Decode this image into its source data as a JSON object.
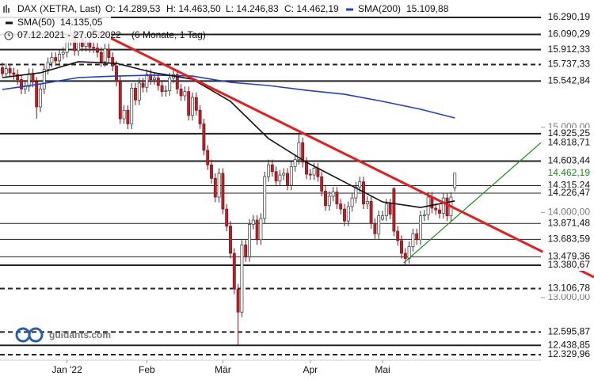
{
  "chart_data": {
    "type": "candlestick",
    "legend": {
      "instrument": "DAX (XETRA, Last)",
      "ohlc": [
        "O: 14.289,53",
        "H: 14.463,50",
        "L: 14.246,83",
        "C: 14.462,19"
      ],
      "range": "07.12.2021 - 27.05.2022",
      "period": "(6 Monate, 1 Tag)"
    },
    "watermark": "guidants.com",
    "ylim": [
      12265,
      16495
    ],
    "yticks": [
      {
        "value": 15000,
        "label": "15.000,00"
      },
      {
        "value": 14000,
        "label": "14.000,00"
      },
      {
        "value": 13000,
        "label": "13.000,00"
      }
    ],
    "xticks": [
      {
        "value": 17,
        "label": "Jan '22"
      },
      {
        "value": 38,
        "label": "Feb"
      },
      {
        "value": 58,
        "label": "Mär"
      },
      {
        "value": 81,
        "label": "Apr"
      },
      {
        "value": 100,
        "label": "Mai"
      }
    ],
    "levels": [
      {
        "value": 16290.19,
        "label": "16.290,19",
        "style": "solid"
      },
      {
        "value": 16090.29,
        "label": "16.090,29",
        "style": "solid"
      },
      {
        "value": 15912.33,
        "label": "15.912,33",
        "style": "solid"
      },
      {
        "value": 15737.33,
        "label": "15.737,33",
        "style": "dashed"
      },
      {
        "value": 15542.84,
        "label": "15.542,84",
        "style": "solid"
      },
      {
        "value": 14925.25,
        "label": "14.925,25",
        "style": "solid"
      },
      {
        "value": 14818.71,
        "label": "14.818,71",
        "style": "none"
      },
      {
        "value": 14603.44,
        "label": "14.603,44",
        "style": "solid"
      },
      {
        "value": 14462.19,
        "label": "14.462,19",
        "style": "current"
      },
      {
        "value": 14315.24,
        "label": "14.315,24",
        "style": "thin"
      },
      {
        "value": 14226.47,
        "label": "14.226,47",
        "style": "thin"
      },
      {
        "value": 13871.48,
        "label": "13.871,48",
        "style": "thin"
      },
      {
        "value": 13683.59,
        "label": "13.683,59",
        "style": "thin"
      },
      {
        "value": 13479.36,
        "label": "13.479,36",
        "style": "thin"
      },
      {
        "value": 13380.67,
        "label": "13.380,67",
        "style": "solid"
      },
      {
        "value": 13106.78,
        "label": "13.106,78",
        "style": "dashed"
      },
      {
        "value": 12595.87,
        "label": "12.595,87",
        "style": "dashed"
      },
      {
        "value": 12438.85,
        "label": "12.438,85",
        "style": "solid"
      },
      {
        "value": 12329.96,
        "label": "12.329,96",
        "style": "dashed"
      }
    ],
    "candles": {
      "open": [
        15700,
        15630,
        15690,
        15640,
        15620,
        15560,
        15450,
        15480,
        15630,
        15530,
        15240,
        15450,
        15680,
        15760,
        15820,
        15780,
        15860,
        15880,
        16020,
        16100,
        15900,
        16050,
        15950,
        16000,
        15940,
        15930,
        15880,
        15770,
        15920,
        15820,
        15720,
        15540,
        15100,
        15200,
        15040,
        15460,
        15320,
        15520,
        15470,
        15620,
        15560,
        15580,
        15490,
        15420,
        15430,
        15580,
        15620,
        15450,
        15370,
        15420,
        15140,
        15350,
        15200,
        15040,
        14730,
        14560,
        14400,
        14180,
        14460,
        14040,
        13840,
        13520,
        13100,
        12830,
        13620,
        13480,
        13860,
        13910,
        13680,
        13930,
        14420,
        14560,
        14480,
        14370,
        14440,
        14460,
        14320,
        14540,
        14620,
        14820,
        14590,
        14450,
        14440,
        14520,
        14420,
        14250,
        14080,
        14190,
        14240,
        14100,
        14040,
        13900,
        14070,
        14170,
        14300,
        14360,
        14100,
        14130,
        13870,
        13750,
        13920,
        13960,
        14100,
        14280,
        13780,
        13670,
        13520,
        13460,
        13600,
        13750,
        13680,
        13960,
        13970,
        14180,
        14050,
        14030,
        13990,
        14170,
        13960,
        14289.53
      ],
      "high": [
        15760,
        15750,
        15740,
        15700,
        15680,
        15620,
        15540,
        15690,
        15690,
        15590,
        15510,
        15740,
        15820,
        15880,
        15880,
        15920,
        15940,
        16080,
        16290,
        16160,
        16110,
        16110,
        16060,
        16060,
        16000,
        15990,
        15940,
        15980,
        15980,
        15880,
        15780,
        15600,
        15260,
        15260,
        15520,
        15520,
        15580,
        15580,
        15680,
        15680,
        15640,
        15640,
        15550,
        15490,
        15640,
        15680,
        15680,
        15510,
        15480,
        15480,
        15410,
        15410,
        15260,
        15100,
        14790,
        14620,
        14460,
        14520,
        14520,
        14100,
        13900,
        13580,
        13160,
        13680,
        13680,
        13920,
        13970,
        13970,
        13990,
        14480,
        14620,
        14620,
        14540,
        14500,
        14520,
        14520,
        14600,
        14680,
        14920,
        14880,
        14650,
        14510,
        14580,
        14580,
        14480,
        14310,
        14250,
        14300,
        14300,
        14160,
        14100,
        14130,
        14230,
        14360,
        14420,
        14420,
        14190,
        14190,
        13930,
        14020,
        14020,
        14160,
        14160,
        14300,
        13840,
        13730,
        13580,
        13660,
        13810,
        13810,
        14020,
        14030,
        14240,
        14240,
        14110,
        14090,
        14230,
        14230,
        14240,
        14463.5
      ],
      "low": [
        15590,
        15580,
        15590,
        15560,
        15500,
        15390,
        15390,
        15420,
        15470,
        15100,
        15180,
        15390,
        15620,
        15700,
        15720,
        15720,
        15800,
        15820,
        15960,
        15840,
        15840,
        15890,
        15890,
        15880,
        15870,
        15820,
        15710,
        15710,
        15760,
        15660,
        15480,
        15040,
        15040,
        14980,
        14980,
        15260,
        15260,
        15410,
        15410,
        15500,
        15500,
        15430,
        15360,
        15360,
        15370,
        15520,
        15390,
        15310,
        15310,
        15080,
        15080,
        15140,
        14980,
        14670,
        14500,
        14340,
        14120,
        14120,
        13980,
        13780,
        13460,
        13040,
        12440,
        12770,
        13420,
        13420,
        13800,
        13620,
        13620,
        13870,
        14360,
        14420,
        14310,
        14310,
        14380,
        14260,
        14260,
        14480,
        14560,
        14530,
        14390,
        14380,
        14380,
        14360,
        14190,
        14020,
        14020,
        14130,
        14040,
        13980,
        13840,
        13840,
        14010,
        14110,
        14240,
        14040,
        14040,
        13810,
        13690,
        13690,
        13900,
        13900,
        13920,
        13720,
        13610,
        13460,
        13380,
        13400,
        13540,
        13620,
        13620,
        13900,
        13910,
        13990,
        13970,
        13930,
        13930,
        13900,
        13900,
        14246.83
      ],
      "close": [
        15630,
        15690,
        15640,
        15620,
        15560,
        15450,
        15480,
        15630,
        15530,
        15240,
        15450,
        15680,
        15760,
        15820,
        15780,
        15860,
        15880,
        16020,
        16100,
        15900,
        16050,
        15950,
        16000,
        15940,
        15930,
        15880,
        15770,
        15920,
        15820,
        15720,
        15540,
        15100,
        15200,
        15040,
        15460,
        15320,
        15520,
        15470,
        15620,
        15560,
        15580,
        15490,
        15420,
        15430,
        15580,
        15620,
        15450,
        15370,
        15420,
        15140,
        15350,
        15200,
        15040,
        14730,
        14560,
        14400,
        14180,
        14460,
        14040,
        13840,
        13520,
        13100,
        12830,
        13620,
        13480,
        13860,
        13910,
        13680,
        13930,
        14420,
        14560,
        14480,
        14370,
        14440,
        14460,
        14320,
        14540,
        14620,
        14820,
        14590,
        14450,
        14440,
        14520,
        14420,
        14250,
        14080,
        14190,
        14240,
        14100,
        14040,
        13900,
        14070,
        14170,
        14300,
        14360,
        14100,
        14130,
        13870,
        13750,
        13960,
        13960,
        14100,
        13980,
        13780,
        13670,
        13520,
        13460,
        13600,
        13750,
        13680,
        13960,
        13970,
        14180,
        14050,
        14030,
        13990,
        14170,
        13960,
        14180,
        14462.19
      ]
    },
    "series": [
      {
        "name": "SMA(200)",
        "color": "#1d3fd6",
        "value_label": "15.109,88",
        "x": [
          0,
          10,
          20,
          30,
          40,
          50,
          60,
          70,
          80,
          90,
          100,
          110,
          119
        ],
        "values": [
          15444,
          15509,
          15584,
          15602,
          15612,
          15602,
          15528,
          15491,
          15435,
          15388,
          15305,
          15212,
          15109.88
        ]
      },
      {
        "name": "SMA(50)",
        "color": "#111111",
        "value_label": "14.135,05",
        "x": [
          0,
          10,
          20,
          30,
          40,
          50,
          60,
          70,
          80,
          90,
          100,
          110,
          119
        ],
        "values": [
          15584,
          15640,
          15770,
          15751,
          15640,
          15565,
          15305,
          14868,
          14589,
          14357,
          14124,
          14059,
          14135.05
        ]
      }
    ],
    "trendlines": [
      {
        "color": "#e41e1e",
        "x": [
          23,
          155.6
        ],
        "values": [
          16169,
          13241
        ]
      },
      {
        "color": "#1a8a1a",
        "x": [
          105.6,
          141.7
        ],
        "values": [
          13408,
          14821
        ]
      }
    ],
    "up_color": "#ffffff",
    "down_color": "#b4232a"
  }
}
